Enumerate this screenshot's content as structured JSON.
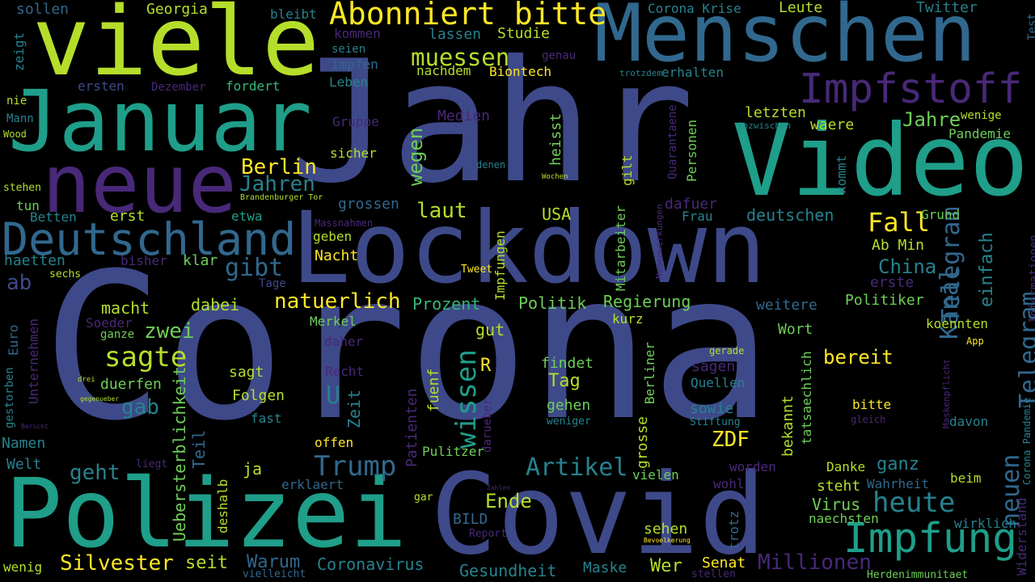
{
  "background": "#000000",
  "palette": [
    "#440154",
    "#482878",
    "#3e4989",
    "#31688e",
    "#26828e",
    "#1f9e89",
    "#35b779",
    "#6ece58",
    "#b5de2b",
    "#fde725"
  ],
  "words": [
    {
      "text": "Corona",
      "color": "#3e4989"
    },
    {
      "text": "Jahr",
      "color": "#3e4989"
    },
    {
      "text": "Lockdown",
      "color": "#3e4989"
    },
    {
      "text": "Covid",
      "color": "#3e4989"
    },
    {
      "text": "Video",
      "color": "#1f9e89"
    },
    {
      "text": "Menschen",
      "color": "#31688e"
    },
    {
      "text": "Polizei",
      "color": "#1f9e89"
    },
    {
      "text": "viele",
      "color": "#b5de2b"
    },
    {
      "text": "Januar",
      "color": "#1f9e89"
    },
    {
      "text": "neue",
      "color": "#482878"
    },
    {
      "text": "Deutschland",
      "color": "#31688e"
    },
    {
      "text": "Impfung",
      "color": "#1f9e89"
    },
    {
      "text": "Impfstoff",
      "color": "#482878"
    },
    {
      "text": "Abonniert bitte",
      "color": "#fde725"
    },
    {
      "text": "Telegram",
      "color": "#31688e"
    },
    {
      "text": "Kanal",
      "color": "#31688e"
    },
    {
      "text": "neuen",
      "color": "#31688e"
    },
    {
      "text": "Telegram",
      "color": "#31688e"
    },
    {
      "text": "Trump",
      "color": "#31688e"
    },
    {
      "text": "heute",
      "color": "#26828e"
    },
    {
      "text": "wissen",
      "color": "#1f9e89"
    },
    {
      "text": "Artikel",
      "color": "#26828e"
    },
    {
      "text": "Fall",
      "color": "#fde725"
    },
    {
      "text": "sagte",
      "color": "#b5de2b"
    },
    {
      "text": "natuerlich",
      "color": "#fde725"
    },
    {
      "text": "muessen",
      "color": "#b5de2b"
    },
    {
      "text": "Silvester",
      "color": "#fde725"
    },
    {
      "text": "Millionen",
      "color": "#482878"
    },
    {
      "text": "ab",
      "color": "#3e4989"
    },
    {
      "text": "gibt",
      "color": "#31688e"
    },
    {
      "text": "Berlin",
      "color": "#fde725"
    },
    {
      "text": "Jahren",
      "color": "#26828e"
    },
    {
      "text": "Jahre",
      "color": "#6ece58"
    },
    {
      "text": "laut",
      "color": "#b5de2b"
    },
    {
      "text": "wegen",
      "color": "#6ece58"
    },
    {
      "text": "ZDF",
      "color": "#fde725"
    },
    {
      "text": "Ende",
      "color": "#b5de2b"
    },
    {
      "text": "ganz",
      "color": "#26828e"
    },
    {
      "text": "geht",
      "color": "#26828e"
    },
    {
      "text": "gab",
      "color": "#26828e"
    },
    {
      "text": "zwei",
      "color": "#6ece58"
    },
    {
      "text": "U",
      "color": "#26828e"
    },
    {
      "text": "einfach",
      "color": "#26828e"
    },
    {
      "text": "China",
      "color": "#26828e"
    },
    {
      "text": "bereit",
      "color": "#fde725"
    },
    {
      "text": "Warum",
      "color": "#31688e"
    },
    {
      "text": "seit",
      "color": "#b5de2b"
    },
    {
      "text": "Coronavirus",
      "color": "#26828e"
    },
    {
      "text": "Gesundheit",
      "color": "#26828e"
    },
    {
      "text": "Maske",
      "color": "#26828e"
    },
    {
      "text": "Wer",
      "color": "#b5de2b"
    },
    {
      "text": "Senat",
      "color": "#fde725"
    },
    {
      "text": "Zeit",
      "color": "#26828e"
    },
    {
      "text": "macht",
      "color": "#b5de2b"
    },
    {
      "text": "dabei",
      "color": "#b5de2b"
    },
    {
      "text": "Prozent",
      "color": "#35b779"
    },
    {
      "text": "Politik",
      "color": "#6ece58"
    },
    {
      "text": "Regierung",
      "color": "#6ece58"
    },
    {
      "text": "Politiker",
      "color": "#6ece58"
    },
    {
      "text": "weitere",
      "color": "#31688e"
    },
    {
      "text": "USA",
      "color": "#b5de2b"
    },
    {
      "text": "Mitarbeiter",
      "color": "#6ece58"
    },
    {
      "text": "erste",
      "color": "#482878"
    },
    {
      "text": "Ab Min",
      "color": "#b5de2b"
    },
    {
      "text": "deutschen",
      "color": "#26828e"
    },
    {
      "text": "etwa",
      "color": "#1f9e89"
    },
    {
      "text": "erst",
      "color": "#b5de2b"
    },
    {
      "text": "Betten",
      "color": "#26828e"
    },
    {
      "text": "tun",
      "color": "#6ece58"
    },
    {
      "text": "haetten",
      "color": "#26828e"
    },
    {
      "text": "klar",
      "color": "#6ece58"
    },
    {
      "text": "bisher",
      "color": "#482878"
    },
    {
      "text": "Nacht",
      "color": "#fde725"
    },
    {
      "text": "geben",
      "color": "#b5de2b"
    },
    {
      "text": "Tage",
      "color": "#3e4989"
    },
    {
      "text": "sechs",
      "color": "#b5de2b"
    },
    {
      "text": "Tweet",
      "color": "#fde725"
    },
    {
      "text": "Impfungen",
      "color": "#b5de2b"
    },
    {
      "text": "Euro",
      "color": "#31688e"
    },
    {
      "text": "Unternehmen",
      "color": "#482878"
    },
    {
      "text": "Soeder",
      "color": "#482878"
    },
    {
      "text": "ganze",
      "color": "#6ece58"
    },
    {
      "text": "Merkel",
      "color": "#6ece58"
    },
    {
      "text": "gut",
      "color": "#b5de2b"
    },
    {
      "text": "kurz",
      "color": "#b5de2b"
    },
    {
      "text": "Wort",
      "color": "#6ece58"
    },
    {
      "text": "koennten",
      "color": "#b5de2b"
    },
    {
      "text": "Informationen",
      "color": "#482878"
    },
    {
      "text": "daher",
      "color": "#482878"
    },
    {
      "text": "findet",
      "color": "#6ece58"
    },
    {
      "text": "Tag",
      "color": "#b5de2b"
    },
    {
      "text": "R",
      "color": "#fde725"
    },
    {
      "text": "Recht",
      "color": "#482878"
    },
    {
      "text": "sagt",
      "color": "#b5de2b"
    },
    {
      "text": "duerfen",
      "color": "#6ece58"
    },
    {
      "text": "Folgen",
      "color": "#b5de2b"
    },
    {
      "text": "Uebersterblichkeit",
      "color": "#6ece58"
    },
    {
      "text": "gestorben",
      "color": "#26828e"
    },
    {
      "text": "fast",
      "color": "#26828e"
    },
    {
      "text": "Patienten",
      "color": "#482878"
    },
    {
      "text": "fuenf",
      "color": "#b5de2b"
    },
    {
      "text": "darueber",
      "color": "#482878"
    },
    {
      "text": "gehen",
      "color": "#6ece58"
    },
    {
      "text": "Berliner",
      "color": "#6ece58"
    },
    {
      "text": "grosse",
      "color": "#b5de2b"
    },
    {
      "text": "sagen",
      "color": "#482878"
    },
    {
      "text": "Quellen",
      "color": "#26828e"
    },
    {
      "text": "sowie",
      "color": "#26828e"
    },
    {
      "text": "bekannt",
      "color": "#b5de2b"
    },
    {
      "text": "tatsaechlich",
      "color": "#6ece58"
    },
    {
      "text": "bitte",
      "color": "#fde725"
    },
    {
      "text": "App",
      "color": "#fde725"
    },
    {
      "text": "Namen",
      "color": "#26828e"
    },
    {
      "text": "Welt",
      "color": "#26828e"
    },
    {
      "text": "Teil",
      "color": "#31688e"
    },
    {
      "text": "ja",
      "color": "#b5de2b"
    },
    {
      "text": "offen",
      "color": "#fde725"
    },
    {
      "text": "Pulitzer",
      "color": "#6ece58"
    },
    {
      "text": "davon",
      "color": "#26828e"
    },
    {
      "text": "Danke",
      "color": "#b5de2b"
    },
    {
      "text": "worden",
      "color": "#482878"
    },
    {
      "text": "wohl",
      "color": "#482878"
    },
    {
      "text": "steht",
      "color": "#b5de2b"
    },
    {
      "text": "Wahrheit",
      "color": "#31688e"
    },
    {
      "text": "beim",
      "color": "#b5de2b"
    },
    {
      "text": "erklaert",
      "color": "#31688e"
    },
    {
      "text": "deshalb",
      "color": "#b5de2b"
    },
    {
      "text": "BILD",
      "color": "#31688e"
    },
    {
      "text": "vielen",
      "color": "#6ece58"
    },
    {
      "text": "Virus",
      "color": "#6ece58"
    },
    {
      "text": "naechsten",
      "color": "#6ece58"
    },
    {
      "text": "wirklich",
      "color": "#26828e"
    },
    {
      "text": "sehen",
      "color": "#b5de2b"
    },
    {
      "text": "trotz",
      "color": "#31688e"
    },
    {
      "text": "Report",
      "color": "#482878"
    },
    {
      "text": "wenig",
      "color": "#b5de2b"
    },
    {
      "text": "vielleicht",
      "color": "#31688e"
    },
    {
      "text": "stellen",
      "color": "#482878"
    },
    {
      "text": "Herdenimmunitaet",
      "color": "#6ece58"
    },
    {
      "text": "Widerstand",
      "color": "#482878"
    },
    {
      "text": "Corona Pandemie",
      "color": "#26828e"
    },
    {
      "text": "sollen",
      "color": "#31688e"
    },
    {
      "text": "Georgia",
      "color": "#b5de2b"
    },
    {
      "text": "bleibt",
      "color": "#26828e"
    },
    {
      "text": "kommen",
      "color": "#482878"
    },
    {
      "text": "lassen",
      "color": "#26828e"
    },
    {
      "text": "Studie",
      "color": "#b5de2b"
    },
    {
      "text": "seien",
      "color": "#26828e"
    },
    {
      "text": "impfen",
      "color": "#31688e"
    },
    {
      "text": "genau",
      "color": "#482878"
    },
    {
      "text": "nachdem",
      "color": "#b5de2b"
    },
    {
      "text": "Biontech",
      "color": "#fde725"
    },
    {
      "text": "Leben",
      "color": "#26828e"
    },
    {
      "text": "Corona Krise",
      "color": "#26828e"
    },
    {
      "text": "Leute",
      "color": "#b5de2b"
    },
    {
      "text": "Twitter",
      "color": "#26828e"
    },
    {
      "text": "Test",
      "color": "#31688e"
    },
    {
      "text": "zeigt",
      "color": "#26828e"
    },
    {
      "text": "ersten",
      "color": "#3e4989"
    },
    {
      "text": "Dezember",
      "color": "#482878"
    },
    {
      "text": "fordert",
      "color": "#35b779"
    },
    {
      "text": "nie",
      "color": "#b5de2b"
    },
    {
      "text": "Mann",
      "color": "#26828e"
    },
    {
      "text": "Wood",
      "color": "#b5de2b"
    },
    {
      "text": "Medien",
      "color": "#482878"
    },
    {
      "text": "Gruppe",
      "color": "#482878"
    },
    {
      "text": "heisst",
      "color": "#6ece58"
    },
    {
      "text": "Quarantaene",
      "color": "#482878"
    },
    {
      "text": "Personen",
      "color": "#6ece58"
    },
    {
      "text": "letzten",
      "color": "#b5de2b"
    },
    {
      "text": "waere",
      "color": "#b5de2b"
    },
    {
      "text": "wenige",
      "color": "#b5de2b"
    },
    {
      "text": "Pandemie",
      "color": "#6ece58"
    },
    {
      "text": "sicher",
      "color": "#b5de2b"
    },
    {
      "text": "denen",
      "color": "#26828e"
    },
    {
      "text": "erhalten",
      "color": "#26828e"
    },
    {
      "text": "trotzdem",
      "color": "#26828e"
    },
    {
      "text": "inzwischen",
      "color": "#26828e"
    },
    {
      "text": "gilt",
      "color": "#b5de2b"
    },
    {
      "text": "kommt",
      "color": "#26828e"
    },
    {
      "text": "stehen",
      "color": "#b5de2b"
    },
    {
      "text": "grossen",
      "color": "#31688e"
    },
    {
      "text": "dafuer",
      "color": "#482878"
    },
    {
      "text": "Frau",
      "color": "#26828e"
    },
    {
      "text": "Grund",
      "color": "#6ece58"
    },
    {
      "text": "Brandenburger Tor",
      "color": "#b5de2b"
    },
    {
      "text": "Wochen",
      "color": "#b5de2b"
    },
    {
      "text": "Massnahmen",
      "color": "#482878"
    },
    {
      "text": "Nebenwirkungen",
      "color": "#482878"
    },
    {
      "text": "gerade",
      "color": "#b5de2b"
    },
    {
      "text": "Maskenpflicht",
      "color": "#482878"
    },
    {
      "text": "gleich",
      "color": "#482878"
    },
    {
      "text": "Stiftung",
      "color": "#26828e"
    },
    {
      "text": "weniger",
      "color": "#26828e"
    },
    {
      "text": "drei",
      "color": "#b5de2b"
    },
    {
      "text": "gegenueber",
      "color": "#b5de2b"
    },
    {
      "text": "Bericht",
      "color": "#482878"
    },
    {
      "text": "liegt",
      "color": "#482878"
    },
    {
      "text": "gar",
      "color": "#b5de2b"
    },
    {
      "text": "Zahlen",
      "color": "#482878"
    },
    {
      "text": "Bevoelkerung",
      "color": "#fde725"
    }
  ]
}
